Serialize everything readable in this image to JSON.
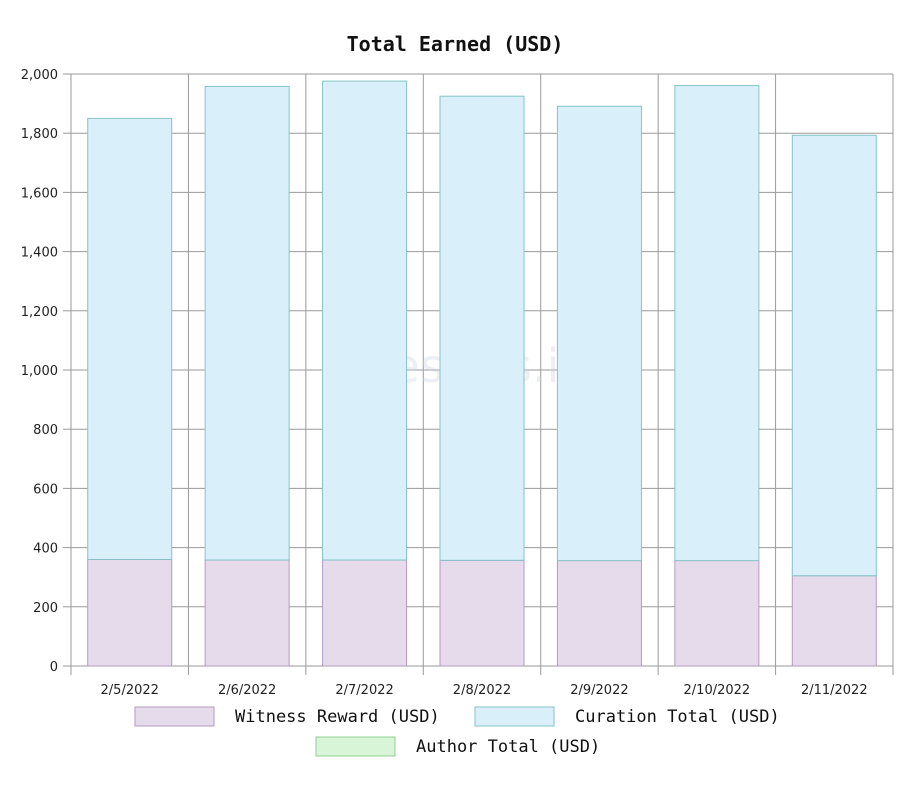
{
  "chart_data": {
    "type": "bar",
    "stacked": true,
    "title": "Total Earned (USD)",
    "watermark": "hivestats.io",
    "categories": [
      "2/5/2022",
      "2/6/2022",
      "2/7/2022",
      "2/8/2022",
      "2/9/2022",
      "2/10/2022",
      "2/11/2022"
    ],
    "series": [
      {
        "name": "Witness Reward (USD)",
        "values": [
          360,
          358,
          358,
          357,
          356,
          356,
          305
        ],
        "color": "#e6dbea",
        "stroke": "#b49ac0"
      },
      {
        "name": "Curation Total (USD)",
        "values": [
          1490,
          1600,
          1618,
          1568,
          1535,
          1605,
          1488
        ],
        "color": "#d9f0fa",
        "stroke": "#86c3c6"
      },
      {
        "name": "Author Total (USD)",
        "values": [
          0,
          0,
          0,
          0,
          0,
          0,
          0
        ],
        "color": "#d8f5d8",
        "stroke": "#90cf90"
      }
    ],
    "ylim": [
      0,
      2000
    ],
    "yticks": [
      0,
      200,
      400,
      600,
      800,
      1000,
      1200,
      1400,
      1600,
      1800,
      2000
    ],
    "ytick_labels": [
      "0",
      "200",
      "400",
      "600",
      "800",
      "1,000",
      "1,200",
      "1,400",
      "1,600",
      "1,800",
      "2,000"
    ],
    "xlabel": "",
    "ylabel": "",
    "grid": true,
    "legend_position": "bottom"
  }
}
